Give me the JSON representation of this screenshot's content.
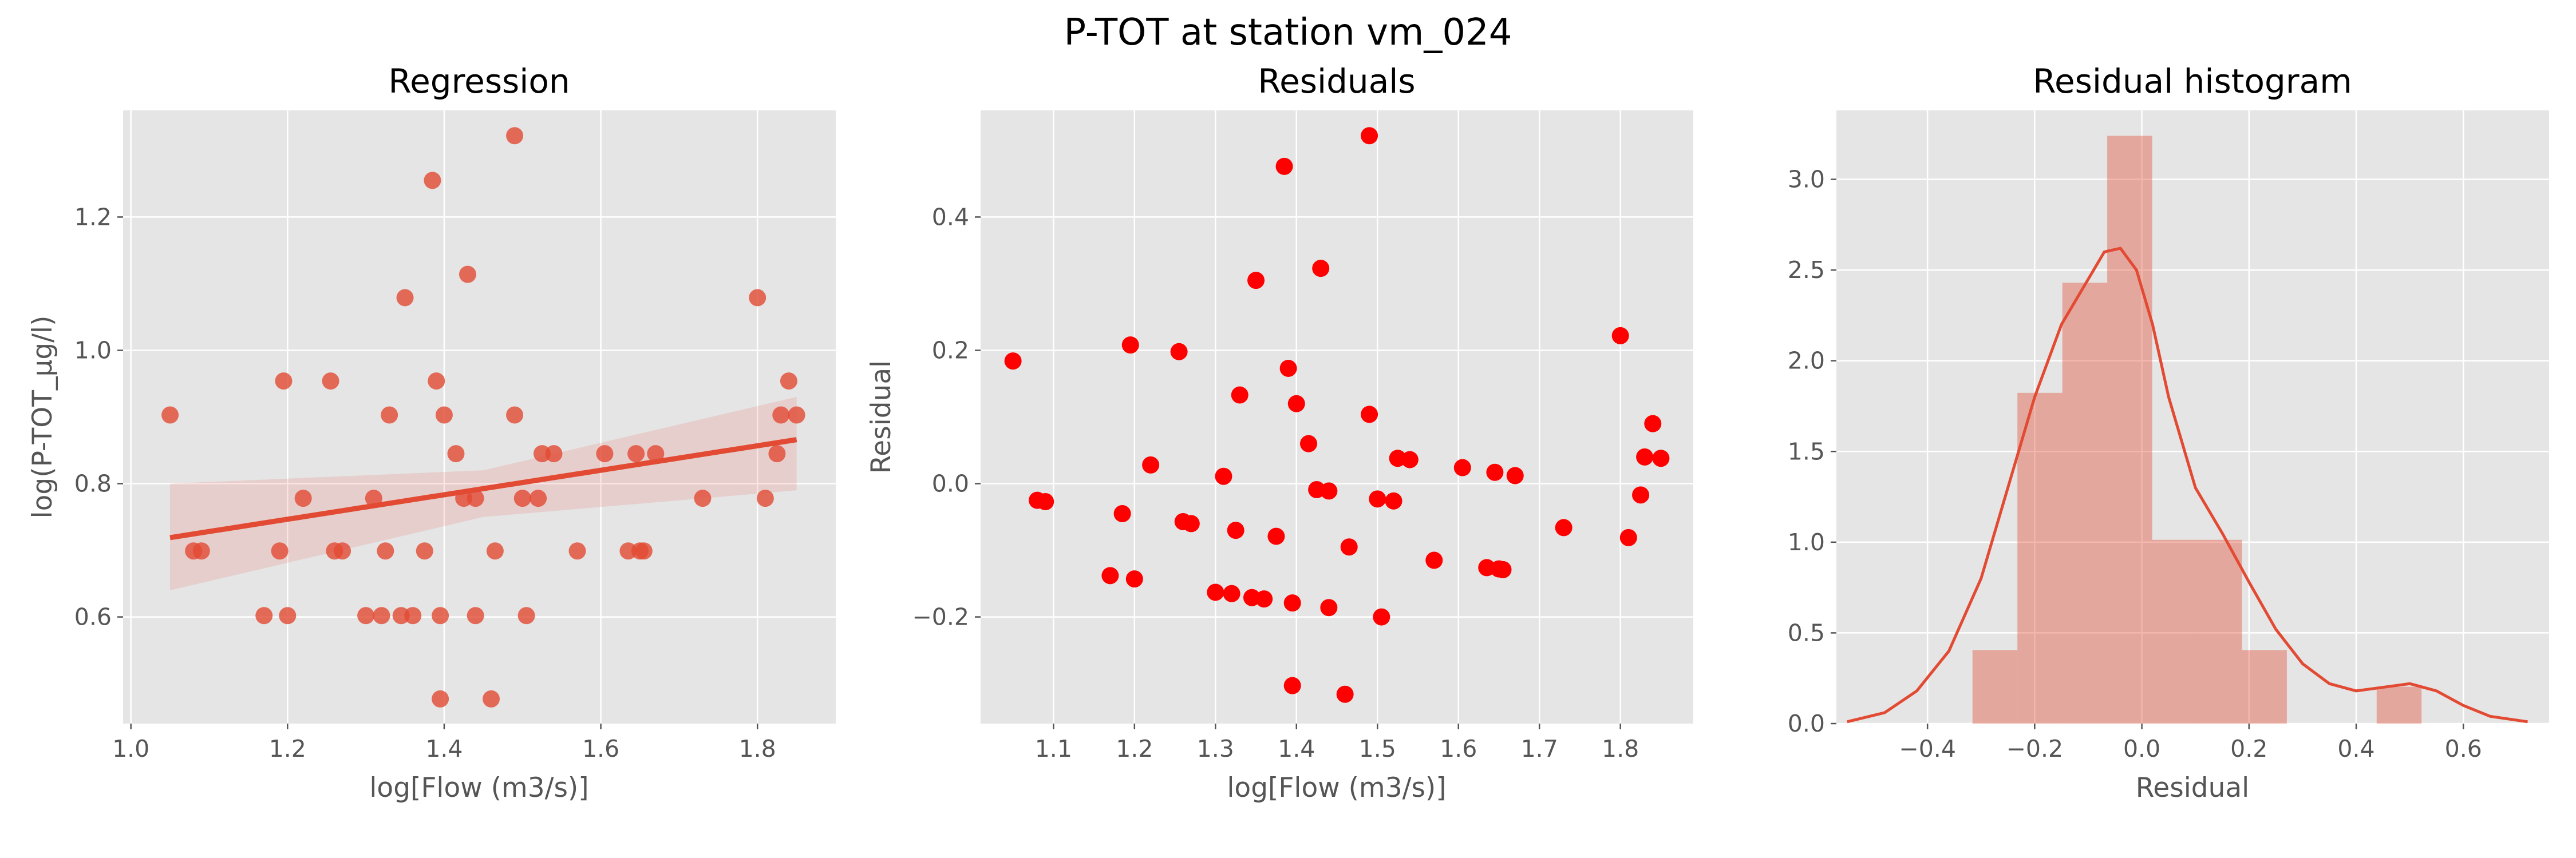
{
  "suptitle": "P-TOT at station vm_024",
  "chart_data": [
    {
      "type": "scatter",
      "title": "Regression",
      "xlabel": "log[Flow (m3/s)]",
      "ylabel": "log(P-TOT_µg/l)",
      "xlim": [
        0.99,
        1.9
      ],
      "ylim": [
        0.44,
        1.36
      ],
      "xticks": [
        "1.0",
        "1.2",
        "1.4",
        "1.6",
        "1.8"
      ],
      "xtick_values": [
        1.0,
        1.2,
        1.4,
        1.6,
        1.8
      ],
      "yticks": [
        "0.6",
        "0.8",
        "1.0",
        "1.2"
      ],
      "ytick_values": [
        0.6,
        0.8,
        1.0,
        1.2
      ],
      "grid": true,
      "point_color": "#e24a33",
      "line_color": "#e24a33",
      "points": [
        [
          1.05,
          0.903
        ],
        [
          1.08,
          0.699
        ],
        [
          1.09,
          0.699
        ],
        [
          1.17,
          0.602
        ],
        [
          1.19,
          0.699
        ],
        [
          1.195,
          0.954
        ],
        [
          1.2,
          0.602
        ],
        [
          1.22,
          0.778
        ],
        [
          1.255,
          0.954
        ],
        [
          1.26,
          0.699
        ],
        [
          1.27,
          0.699
        ],
        [
          1.3,
          0.602
        ],
        [
          1.31,
          0.778
        ],
        [
          1.32,
          0.602
        ],
        [
          1.325,
          0.699
        ],
        [
          1.33,
          0.903
        ],
        [
          1.345,
          0.602
        ],
        [
          1.35,
          1.079
        ],
        [
          1.36,
          0.602
        ],
        [
          1.375,
          0.699
        ],
        [
          1.385,
          1.255
        ],
        [
          1.39,
          0.954
        ],
        [
          1.395,
          0.602
        ],
        [
          1.395,
          0.477
        ],
        [
          1.4,
          0.903
        ],
        [
          1.415,
          0.845
        ],
        [
          1.425,
          0.778
        ],
        [
          1.43,
          1.114
        ],
        [
          1.44,
          0.778
        ],
        [
          1.44,
          0.602
        ],
        [
          1.46,
          0.477
        ],
        [
          1.465,
          0.699
        ],
        [
          1.49,
          1.322
        ],
        [
          1.49,
          0.903
        ],
        [
          1.5,
          0.778
        ],
        [
          1.505,
          0.602
        ],
        [
          1.52,
          0.778
        ],
        [
          1.525,
          0.845
        ],
        [
          1.54,
          0.845
        ],
        [
          1.57,
          0.699
        ],
        [
          1.605,
          0.845
        ],
        [
          1.635,
          0.699
        ],
        [
          1.645,
          0.845
        ],
        [
          1.65,
          0.699
        ],
        [
          1.655,
          0.699
        ],
        [
          1.67,
          0.845
        ],
        [
          1.73,
          0.778
        ],
        [
          1.8,
          1.079
        ],
        [
          1.81,
          0.778
        ],
        [
          1.825,
          0.845
        ],
        [
          1.83,
          0.903
        ],
        [
          1.84,
          0.954
        ],
        [
          1.85,
          0.903
        ]
      ],
      "regression_line": {
        "x": [
          1.05,
          1.85
        ],
        "y": [
          0.719,
          0.866
        ]
      },
      "confidence_band": {
        "x": [
          1.05,
          1.45,
          1.85
        ],
        "upper": [
          0.8,
          0.82,
          0.93
        ],
        "lower": [
          0.64,
          0.75,
          0.79
        ]
      }
    },
    {
      "type": "scatter",
      "title": "Residuals",
      "xlabel": "log[Flow (m3/s)]",
      "ylabel": "Residual",
      "xlim": [
        1.01,
        1.89
      ],
      "ylim": [
        -0.36,
        0.56
      ],
      "xticks": [
        "1.1",
        "1.2",
        "1.3",
        "1.4",
        "1.5",
        "1.6",
        "1.7",
        "1.8"
      ],
      "xtick_values": [
        1.1,
        1.2,
        1.3,
        1.4,
        1.5,
        1.6,
        1.7,
        1.8
      ],
      "yticks": [
        "−0.2",
        "0.0",
        "0.2",
        "0.4"
      ],
      "ytick_values": [
        -0.2,
        0.0,
        0.2,
        0.4
      ],
      "grid": true,
      "point_color": "#ff0000",
      "points": [
        [
          1.05,
          0.184
        ],
        [
          1.08,
          -0.025
        ],
        [
          1.09,
          -0.027
        ],
        [
          1.17,
          -0.138
        ],
        [
          1.185,
          -0.045
        ],
        [
          1.195,
          0.208
        ],
        [
          1.2,
          -0.143
        ],
        [
          1.22,
          0.028
        ],
        [
          1.255,
          0.198
        ],
        [
          1.26,
          -0.057
        ],
        [
          1.27,
          -0.06
        ],
        [
          1.3,
          -0.163
        ],
        [
          1.31,
          0.011
        ],
        [
          1.32,
          -0.165
        ],
        [
          1.325,
          -0.07
        ],
        [
          1.33,
          0.133
        ],
        [
          1.345,
          -0.171
        ],
        [
          1.35,
          0.305
        ],
        [
          1.36,
          -0.173
        ],
        [
          1.375,
          -0.079
        ],
        [
          1.385,
          0.476
        ],
        [
          1.39,
          0.173
        ],
        [
          1.395,
          -0.179
        ],
        [
          1.395,
          -0.303
        ],
        [
          1.4,
          0.12
        ],
        [
          1.415,
          0.06
        ],
        [
          1.425,
          -0.009
        ],
        [
          1.43,
          0.323
        ],
        [
          1.44,
          -0.011
        ],
        [
          1.44,
          -0.186
        ],
        [
          1.46,
          -0.316
        ],
        [
          1.465,
          -0.095
        ],
        [
          1.49,
          0.522
        ],
        [
          1.49,
          0.104
        ],
        [
          1.5,
          -0.023
        ],
        [
          1.505,
          -0.2
        ],
        [
          1.52,
          -0.026
        ],
        [
          1.525,
          0.038
        ],
        [
          1.54,
          0.036
        ],
        [
          1.57,
          -0.115
        ],
        [
          1.605,
          0.024
        ],
        [
          1.635,
          -0.126
        ],
        [
          1.645,
          0.017
        ],
        [
          1.65,
          -0.128
        ],
        [
          1.655,
          -0.129
        ],
        [
          1.67,
          0.012
        ],
        [
          1.73,
          -0.066
        ],
        [
          1.8,
          0.222
        ],
        [
          1.81,
          -0.081
        ],
        [
          1.825,
          -0.017
        ],
        [
          1.83,
          0.04
        ],
        [
          1.84,
          0.09
        ],
        [
          1.85,
          0.038
        ]
      ]
    },
    {
      "type": "bar",
      "title": "Residual histogram",
      "xlabel": "Residual",
      "ylabel": "",
      "xlim": [
        -0.57,
        0.76
      ],
      "ylim": [
        0,
        3.38
      ],
      "xticks": [
        "−0.4",
        "−0.2",
        "0.0",
        "0.2",
        "0.4",
        "0.6"
      ],
      "xtick_values": [
        -0.4,
        -0.2,
        0.0,
        0.2,
        0.4,
        0.6
      ],
      "yticks": [
        "0.0",
        "0.5",
        "1.0",
        "1.5",
        "2.0",
        "2.5",
        "3.0"
      ],
      "ytick_values": [
        0.0,
        0.5,
        1.0,
        1.5,
        2.0,
        2.5,
        3.0
      ],
      "grid": true,
      "bar_color": "#e24a33",
      "line_color": "#e24a33",
      "bin_edges": [
        -0.316,
        -0.2322,
        -0.1484,
        -0.0646,
        0.0192,
        0.103,
        0.1868,
        0.2706,
        0.3544,
        0.4382,
        0.522
      ],
      "densities": [
        0.405,
        1.823,
        2.43,
        3.24,
        1.013,
        1.013,
        0.405,
        0.0,
        0.0,
        0.203
      ],
      "kde": {
        "x": [
          -0.55,
          -0.48,
          -0.42,
          -0.36,
          -0.3,
          -0.25,
          -0.2,
          -0.15,
          -0.1,
          -0.07,
          -0.04,
          -0.01,
          0.02,
          0.05,
          0.1,
          0.15,
          0.2,
          0.25,
          0.3,
          0.35,
          0.4,
          0.45,
          0.5,
          0.55,
          0.6,
          0.65,
          0.72
        ],
        "y": [
          0.01,
          0.06,
          0.18,
          0.4,
          0.8,
          1.3,
          1.8,
          2.2,
          2.45,
          2.6,
          2.62,
          2.5,
          2.2,
          1.8,
          1.3,
          1.05,
          0.78,
          0.52,
          0.33,
          0.22,
          0.18,
          0.2,
          0.22,
          0.18,
          0.1,
          0.04,
          0.01
        ]
      }
    }
  ]
}
